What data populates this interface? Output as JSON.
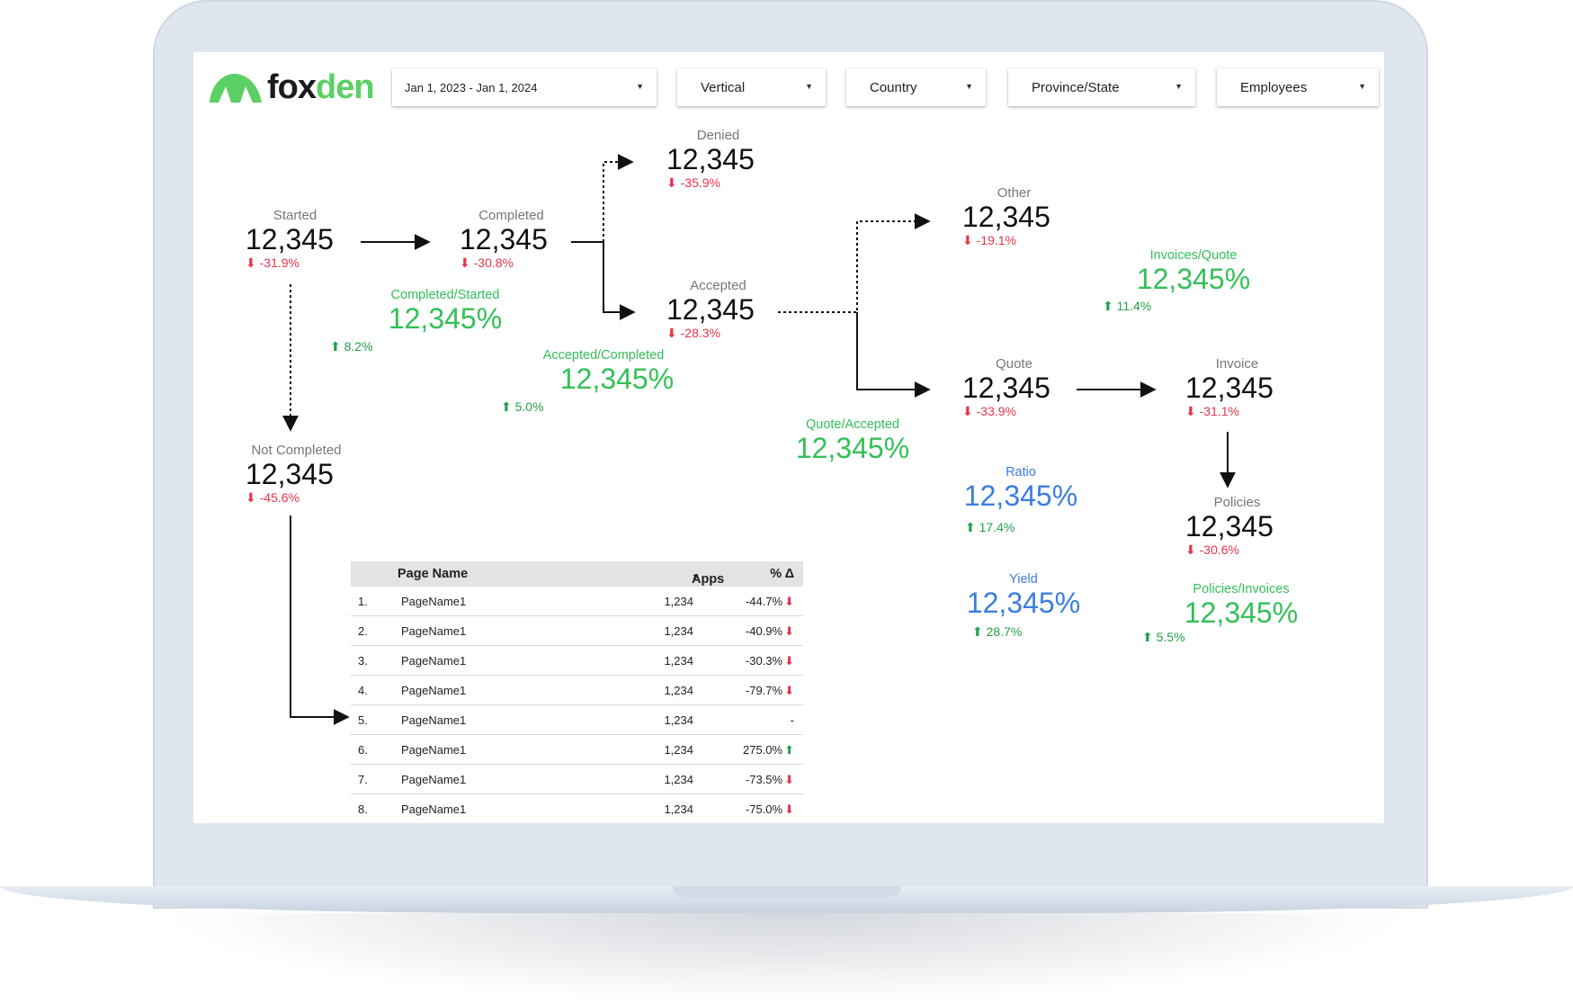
{
  "brand": {
    "logo_part1": "fox",
    "logo_part2": "den",
    "accent": "#5bd065"
  },
  "filters": [
    {
      "label": "Jan 1, 2023 - Jan 1, 2024"
    },
    {
      "label": "Vertical"
    },
    {
      "label": "Country"
    },
    {
      "label": "Province/State"
    },
    {
      "label": "Employees"
    }
  ],
  "metrics": {
    "started": {
      "label": "Started",
      "value": "12,345",
      "delta": "-31.9%"
    },
    "completed": {
      "label": "Completed",
      "value": "12,345",
      "delta": "-30.8%"
    },
    "denied": {
      "label": "Denied",
      "value": "12,345",
      "delta": "-35.9%"
    },
    "accepted": {
      "label": "Accepted",
      "value": "12,345",
      "delta": "-28.3%"
    },
    "other": {
      "label": "Other",
      "value": "12,345",
      "delta": "-19.1%"
    },
    "quote": {
      "label": "Quote",
      "value": "12,345",
      "delta": "-33.9%"
    },
    "invoice": {
      "label": "Invoice",
      "value": "12,345",
      "delta": "-31.1%"
    },
    "policies": {
      "label": "Policies",
      "value": "12,345",
      "delta": "-30.6%"
    },
    "not_completed": {
      "label": "Not Completed",
      "value": "12,345",
      "delta": "-45.6%"
    }
  },
  "ratios": {
    "completed_started": {
      "label": "Completed/Started",
      "value": "12,345%",
      "delta": "8.2%"
    },
    "accepted_completed": {
      "label": "Accepted/Completed",
      "value": "12,345%",
      "delta": "5.0%"
    },
    "quote_accepted": {
      "label": "Quote/Accepted",
      "value": "12,345%"
    },
    "invoices_quote": {
      "label": "Invoices/Quote",
      "value": "12,345%",
      "delta": "11.4%"
    },
    "ratio": {
      "label": "Ratio",
      "value": "12,345%",
      "delta": "17.4%"
    },
    "yield": {
      "label": "Yield",
      "value": "12,345%",
      "delta": "28.7%"
    },
    "policies_invoices": {
      "label": "Policies/Invoices",
      "value": "12,345%",
      "delta": "5.5%"
    }
  },
  "colors": {
    "negative": "#e8334a",
    "positive": "#22a24a",
    "ratio_green": "#33c058",
    "ratio_blue": "#3b7de0"
  },
  "table": {
    "headers": {
      "name": "Page Name",
      "apps": "Apps",
      "pct": "% Δ"
    },
    "rows": [
      {
        "idx": "1.",
        "name": "PageName1",
        "apps": "1,234",
        "pct": "-44.7%",
        "dir": "down"
      },
      {
        "idx": "2.",
        "name": "PageName1",
        "apps": "1,234",
        "pct": "-40.9%",
        "dir": "down"
      },
      {
        "idx": "3.",
        "name": "PageName1",
        "apps": "1,234",
        "pct": "-30.3%",
        "dir": "down"
      },
      {
        "idx": "4.",
        "name": "PageName1",
        "apps": "1,234",
        "pct": "-79.7%",
        "dir": "down"
      },
      {
        "idx": "5.",
        "name": "PageName1",
        "apps": "1,234",
        "pct": "-",
        "dir": "none"
      },
      {
        "idx": "6.",
        "name": "PageName1",
        "apps": "1,234",
        "pct": "275.0%",
        "dir": "up"
      },
      {
        "idx": "7.",
        "name": "PageName1",
        "apps": "1,234",
        "pct": "-73.5%",
        "dir": "down"
      },
      {
        "idx": "8.",
        "name": "PageName1",
        "apps": "1,234",
        "pct": "-75.0%",
        "dir": "down"
      }
    ]
  }
}
